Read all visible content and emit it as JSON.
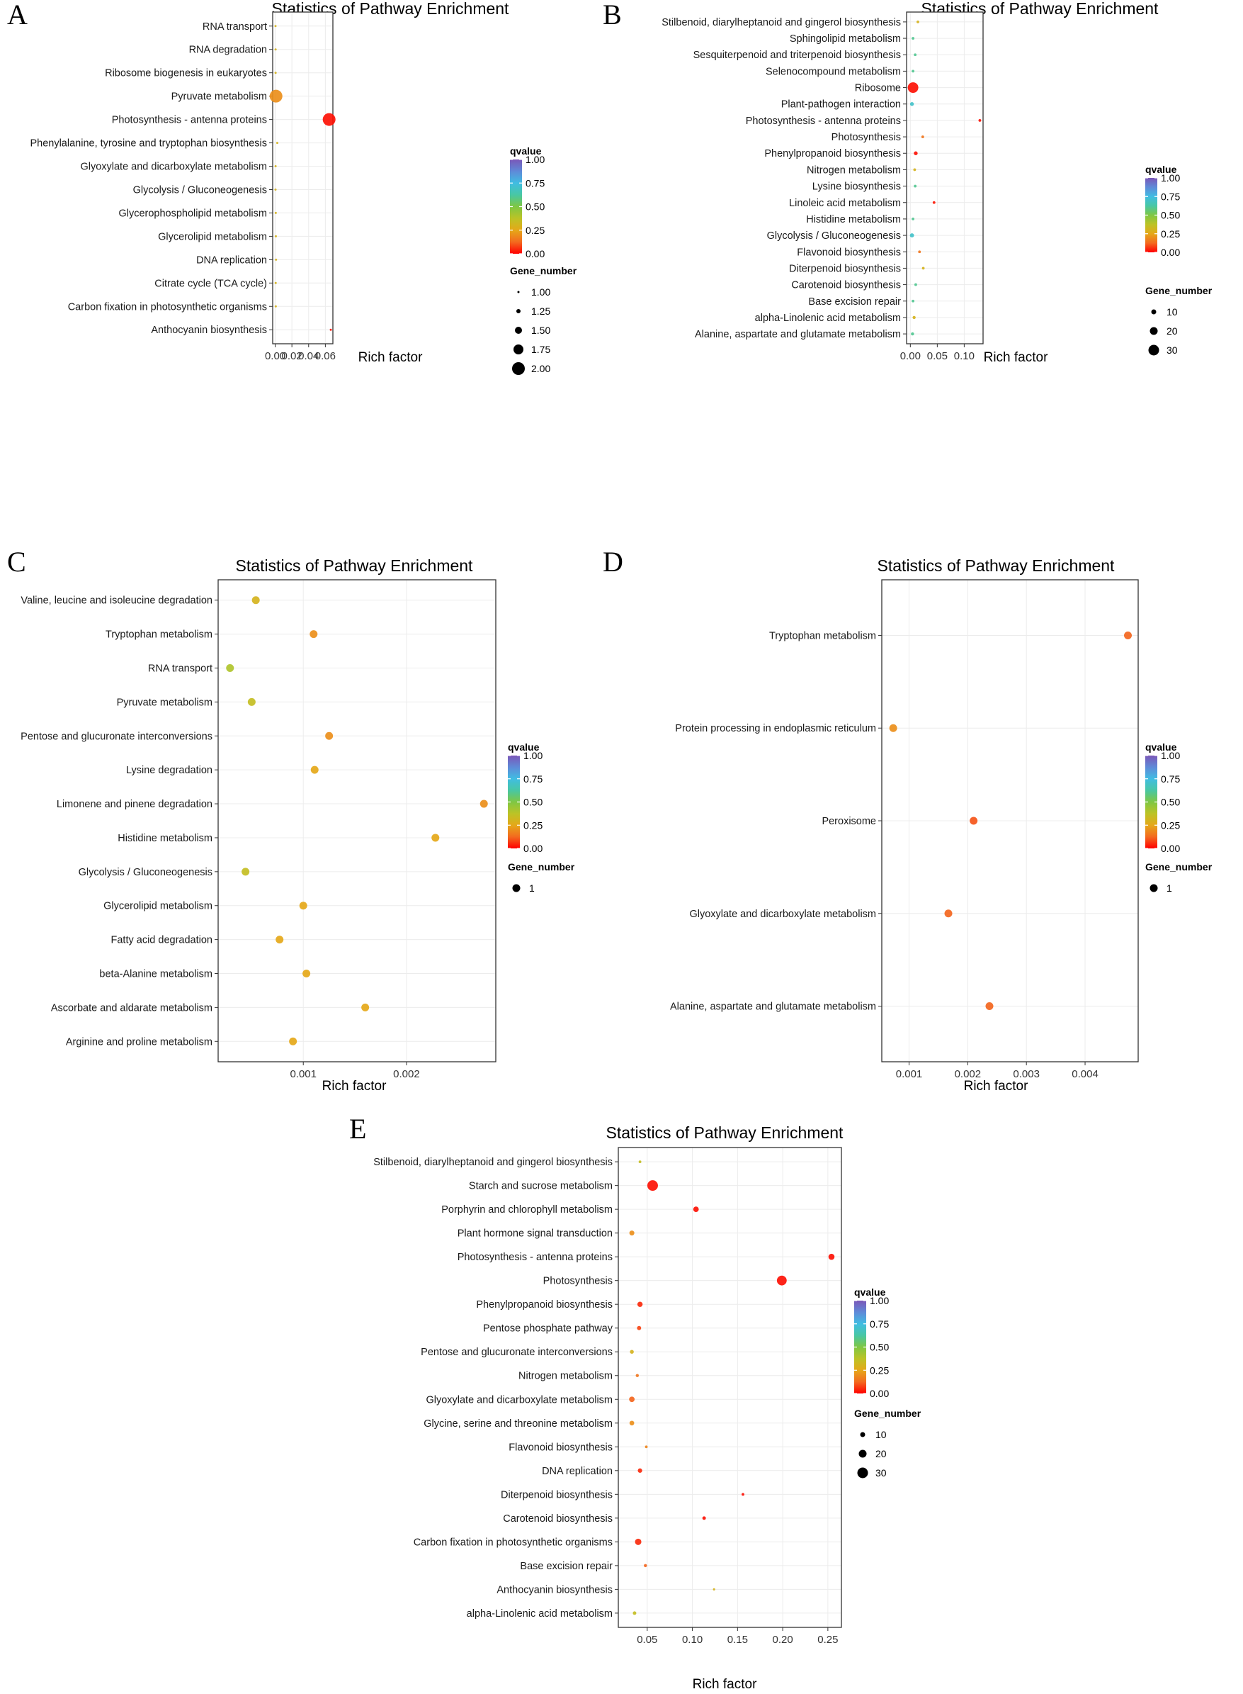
{
  "figure": {
    "colorbar_ticks": [
      "1.00",
      "0.75",
      "0.50",
      "0.25",
      "0.00"
    ]
  },
  "chart_data": [
    {
      "panel": "A",
      "type": "scatter",
      "title": "Statistics of Pathway Enrichment",
      "xlabel": "Rich factor",
      "xlim": [
        -0.003,
        0.069
      ],
      "xticks": [
        0,
        0.02,
        0.04,
        0.06
      ],
      "xtick_labels": [
        "0.00",
        "0.02",
        "0.04",
        "0.06"
      ],
      "legend": {
        "color_title": "qvalue",
        "size_title": "Gene_number",
        "size_labels": [
          "1.00",
          "1.25",
          "1.50",
          "1.75",
          "2.00"
        ],
        "size_values": [
          1,
          1.25,
          1.5,
          1.75,
          2
        ]
      },
      "points": [
        {
          "pathway": "RNA transport",
          "rich_factor": 0.0004,
          "qvalue": 0.3,
          "gene_number": 1
        },
        {
          "pathway": "RNA degradation",
          "rich_factor": 0.0005,
          "qvalue": 0.3,
          "gene_number": 1
        },
        {
          "pathway": "Ribosome biogenesis in eukaryotes",
          "rich_factor": 0.0005,
          "qvalue": 0.3,
          "gene_number": 1
        },
        {
          "pathway": "Pyruvate metabolism",
          "rich_factor": 0.001,
          "qvalue": 0.2,
          "gene_number": 2
        },
        {
          "pathway": "Photosynthesis - antenna proteins",
          "rich_factor": 0.0645,
          "qvalue": 0.02,
          "gene_number": 2
        },
        {
          "pathway": "Phenylalanine, tyrosine and tryptophan biosynthesis",
          "rich_factor": 0.0025,
          "qvalue": 0.3,
          "gene_number": 1
        },
        {
          "pathway": "Glyoxylate and dicarboxylate metabolism",
          "rich_factor": 0.0005,
          "qvalue": 0.3,
          "gene_number": 1
        },
        {
          "pathway": "Glycolysis / Gluconeogenesis",
          "rich_factor": 0.0004,
          "qvalue": 0.3,
          "gene_number": 1
        },
        {
          "pathway": "Glycerophospholipid metabolism",
          "rich_factor": 0.0007,
          "qvalue": 0.3,
          "gene_number": 1
        },
        {
          "pathway": "Glycerolipid metabolism",
          "rich_factor": 0.0008,
          "qvalue": 0.3,
          "gene_number": 1
        },
        {
          "pathway": "DNA replication",
          "rich_factor": 0.001,
          "qvalue": 0.3,
          "gene_number": 1
        },
        {
          "pathway": "Citrate cycle (TCA cycle)",
          "rich_factor": 0.0006,
          "qvalue": 0.3,
          "gene_number": 1
        },
        {
          "pathway": "Carbon fixation in photosynthetic organisms",
          "rich_factor": 0.0007,
          "qvalue": 0.3,
          "gene_number": 1
        },
        {
          "pathway": "Anthocyanin biosynthesis",
          "rich_factor": 0.0665,
          "qvalue": 0.02,
          "gene_number": 1
        }
      ]
    },
    {
      "panel": "B",
      "type": "scatter",
      "title": "Statistics of Pathway Enrichment",
      "xlabel": "Rich factor",
      "xlim": [
        -0.007,
        0.135
      ],
      "xticks": [
        0,
        0.05,
        0.1
      ],
      "xtick_labels": [
        "0.00",
        "0.05",
        "0.10"
      ],
      "legend": {
        "color_title": "qvalue",
        "size_title": "Gene_number",
        "size_labels": [
          "10",
          "20",
          "30"
        ],
        "size_values": [
          10,
          20,
          30
        ]
      },
      "points": [
        {
          "pathway": "Stilbenoid, diarylheptanoid and gingerol biosynthesis",
          "rich_factor": 0.014,
          "qvalue": 0.3,
          "gene_number": 3
        },
        {
          "pathway": "Sphingolipid metabolism",
          "rich_factor": 0.005,
          "qvalue": 0.6,
          "gene_number": 3
        },
        {
          "pathway": "Sesquiterpenoid and triterpenoid biosynthesis",
          "rich_factor": 0.009,
          "qvalue": 0.6,
          "gene_number": 3
        },
        {
          "pathway": "Selenocompound metabolism",
          "rich_factor": 0.005,
          "qvalue": 0.6,
          "gene_number": 3
        },
        {
          "pathway": "Ribosome",
          "rich_factor": 0.005,
          "qvalue": 0.02,
          "gene_number": 35
        },
        {
          "pathway": "Plant-pathogen interaction",
          "rich_factor": 0.003,
          "qvalue": 0.7,
          "gene_number": 6
        },
        {
          "pathway": "Photosynthesis - antenna proteins",
          "rich_factor": 0.129,
          "qvalue": 0.02,
          "gene_number": 3
        },
        {
          "pathway": "Photosynthesis",
          "rich_factor": 0.023,
          "qvalue": 0.15,
          "gene_number": 3
        },
        {
          "pathway": "Phenylpropanoid biosynthesis",
          "rich_factor": 0.01,
          "qvalue": 0.02,
          "gene_number": 6
        },
        {
          "pathway": "Nitrogen metabolism",
          "rich_factor": 0.008,
          "qvalue": 0.3,
          "gene_number": 3
        },
        {
          "pathway": "Lysine biosynthesis",
          "rich_factor": 0.009,
          "qvalue": 0.6,
          "gene_number": 3
        },
        {
          "pathway": "Linoleic acid metabolism",
          "rich_factor": 0.044,
          "qvalue": 0.03,
          "gene_number": 3
        },
        {
          "pathway": "Histidine metabolism",
          "rich_factor": 0.005,
          "qvalue": 0.6,
          "gene_number": 3
        },
        {
          "pathway": "Glycolysis / Gluconeogenesis",
          "rich_factor": 0.003,
          "qvalue": 0.7,
          "gene_number": 7
        },
        {
          "pathway": "Flavonoid biosynthesis",
          "rich_factor": 0.017,
          "qvalue": 0.15,
          "gene_number": 3
        },
        {
          "pathway": "Diterpenoid biosynthesis",
          "rich_factor": 0.024,
          "qvalue": 0.3,
          "gene_number": 3
        },
        {
          "pathway": "Carotenoid biosynthesis",
          "rich_factor": 0.01,
          "qvalue": 0.6,
          "gene_number": 3
        },
        {
          "pathway": "Base excision repair",
          "rich_factor": 0.005,
          "qvalue": 0.6,
          "gene_number": 3
        },
        {
          "pathway": "alpha-Linolenic acid metabolism",
          "rich_factor": 0.007,
          "qvalue": 0.3,
          "gene_number": 4
        },
        {
          "pathway": "Alanine, aspartate and glutamate metabolism",
          "rich_factor": 0.004,
          "qvalue": 0.6,
          "gene_number": 4
        }
      ]
    },
    {
      "panel": "C",
      "type": "scatter",
      "title": "Statistics of Pathway Enrichment",
      "xlabel": "Rich factor",
      "xlim": [
        0.000175,
        0.002865
      ],
      "xticks": [
        0.001,
        0.002
      ],
      "xtick_labels": [
        "0.001",
        "0.002"
      ],
      "legend": {
        "color_title": "qvalue",
        "size_title": "Gene_number",
        "size_labels": [
          "1"
        ],
        "size_values": [
          1
        ]
      },
      "points": [
        {
          "pathway": "Valine, leucine and isoleucine degradation",
          "rich_factor": 0.00054,
          "qvalue": 0.3,
          "gene_number": 1
        },
        {
          "pathway": "Tryptophan metabolism",
          "rich_factor": 0.0011,
          "qvalue": 0.2,
          "gene_number": 1
        },
        {
          "pathway": "RNA transport",
          "rich_factor": 0.00029,
          "qvalue": 0.4,
          "gene_number": 1
        },
        {
          "pathway": "Pyruvate metabolism",
          "rich_factor": 0.0005,
          "qvalue": 0.35,
          "gene_number": 1
        },
        {
          "pathway": "Pentose and glucuronate interconversions",
          "rich_factor": 0.00125,
          "qvalue": 0.2,
          "gene_number": 1
        },
        {
          "pathway": "Lysine degradation",
          "rich_factor": 0.00111,
          "qvalue": 0.25,
          "gene_number": 1
        },
        {
          "pathway": "Limonene and pinene degradation",
          "rich_factor": 0.00275,
          "qvalue": 0.2,
          "gene_number": 1
        },
        {
          "pathway": "Histidine metabolism",
          "rich_factor": 0.00228,
          "qvalue": 0.25,
          "gene_number": 1
        },
        {
          "pathway": "Glycolysis / Gluconeogenesis",
          "rich_factor": 0.00044,
          "qvalue": 0.35,
          "gene_number": 1
        },
        {
          "pathway": "Glycerolipid metabolism",
          "rich_factor": 0.001,
          "qvalue": 0.25,
          "gene_number": 1
        },
        {
          "pathway": "Fatty acid degradation",
          "rich_factor": 0.00077,
          "qvalue": 0.25,
          "gene_number": 1
        },
        {
          "pathway": "beta-Alanine metabolism",
          "rich_factor": 0.00103,
          "qvalue": 0.25,
          "gene_number": 1
        },
        {
          "pathway": "Ascorbate and aldarate metabolism",
          "rich_factor": 0.0016,
          "qvalue": 0.25,
          "gene_number": 1
        },
        {
          "pathway": "Arginine and proline metabolism",
          "rich_factor": 0.0009,
          "qvalue": 0.25,
          "gene_number": 1
        }
      ]
    },
    {
      "panel": "D",
      "type": "scatter",
      "title": "Statistics of Pathway Enrichment",
      "xlabel": "Rich factor",
      "xlim": [
        0.000535,
        0.004905
      ],
      "xticks": [
        0.001,
        0.002,
        0.003,
        0.004
      ],
      "xtick_labels": [
        "0.001",
        "0.002",
        "0.003",
        "0.004"
      ],
      "legend": {
        "color_title": "qvalue",
        "size_title": "Gene_number",
        "size_labels": [
          "1"
        ],
        "size_values": [
          1
        ]
      },
      "points": [
        {
          "pathway": "Tryptophan metabolism",
          "rich_factor": 0.00473,
          "qvalue": 0.12,
          "gene_number": 1
        },
        {
          "pathway": "Protein processing in endoplasmic reticulum",
          "rich_factor": 0.00073,
          "qvalue": 0.2,
          "gene_number": 1
        },
        {
          "pathway": "Peroxisome",
          "rich_factor": 0.0021,
          "qvalue": 0.1,
          "gene_number": 1
        },
        {
          "pathway": "Glyoxylate and dicarboxylate metabolism",
          "rich_factor": 0.00167,
          "qvalue": 0.12,
          "gene_number": 1
        },
        {
          "pathway": "Alanine, aspartate and glutamate metabolism",
          "rich_factor": 0.00237,
          "qvalue": 0.12,
          "gene_number": 1
        }
      ]
    },
    {
      "panel": "E",
      "type": "scatter",
      "title": "Statistics of Pathway Enrichment",
      "xlabel": "Rich factor",
      "xlim": [
        0.018,
        0.265
      ],
      "xticks": [
        0.05,
        0.1,
        0.15,
        0.2,
        0.25
      ],
      "xtick_labels": [
        "0.05",
        "0.10",
        "0.15",
        "0.20",
        "0.25"
      ],
      "legend": {
        "color_title": "qvalue",
        "size_title": "Gene_number",
        "size_labels": [
          "10",
          "20",
          "30"
        ],
        "size_values": [
          10,
          20,
          30
        ]
      },
      "points": [
        {
          "pathway": "Stilbenoid, diarylheptanoid and gingerol biosynthesis",
          "rich_factor": 0.042,
          "qvalue": 0.35,
          "gene_number": 3
        },
        {
          "pathway": "Starch and sucrose metabolism",
          "rich_factor": 0.056,
          "qvalue": 0.02,
          "gene_number": 32
        },
        {
          "pathway": "Porphyrin and chlorophyll metabolism",
          "rich_factor": 0.104,
          "qvalue": 0.02,
          "gene_number": 12
        },
        {
          "pathway": "Plant hormone signal transduction",
          "rich_factor": 0.033,
          "qvalue": 0.2,
          "gene_number": 10
        },
        {
          "pathway": "Photosynthesis - antenna proteins",
          "rich_factor": 0.254,
          "qvalue": 0.02,
          "gene_number": 14
        },
        {
          "pathway": "Photosynthesis",
          "rich_factor": 0.199,
          "qvalue": 0.02,
          "gene_number": 27
        },
        {
          "pathway": "Phenylpropanoid biosynthesis",
          "rich_factor": 0.042,
          "qvalue": 0.05,
          "gene_number": 11
        },
        {
          "pathway": "Pentose phosphate pathway",
          "rich_factor": 0.041,
          "qvalue": 0.08,
          "gene_number": 7
        },
        {
          "pathway": "Pentose and glucuronate interconversions",
          "rich_factor": 0.033,
          "qvalue": 0.3,
          "gene_number": 6
        },
        {
          "pathway": "Nitrogen metabolism",
          "rich_factor": 0.039,
          "qvalue": 0.15,
          "gene_number": 4
        },
        {
          "pathway": "Glyoxylate and dicarboxylate metabolism",
          "rich_factor": 0.033,
          "qvalue": 0.12,
          "gene_number": 12
        },
        {
          "pathway": "Glycine, serine and threonine metabolism",
          "rich_factor": 0.033,
          "qvalue": 0.2,
          "gene_number": 9
        },
        {
          "pathway": "Flavonoid biosynthesis",
          "rich_factor": 0.049,
          "qvalue": 0.18,
          "gene_number": 3
        },
        {
          "pathway": "DNA replication",
          "rich_factor": 0.042,
          "qvalue": 0.05,
          "gene_number": 8
        },
        {
          "pathway": "Diterpenoid biosynthesis",
          "rich_factor": 0.156,
          "qvalue": 0.02,
          "gene_number": 3
        },
        {
          "pathway": "Carotenoid biosynthesis",
          "rich_factor": 0.113,
          "qvalue": 0.02,
          "gene_number": 5
        },
        {
          "pathway": "Carbon fixation in photosynthetic organisms",
          "rich_factor": 0.04,
          "qvalue": 0.05,
          "gene_number": 15
        },
        {
          "pathway": "Base excision repair",
          "rich_factor": 0.048,
          "qvalue": 0.12,
          "gene_number": 4
        },
        {
          "pathway": "Anthocyanin biosynthesis",
          "rich_factor": 0.124,
          "qvalue": 0.3,
          "gene_number": 2
        },
        {
          "pathway": "alpha-Linolenic acid metabolism",
          "rich_factor": 0.036,
          "qvalue": 0.35,
          "gene_number": 5
        }
      ]
    }
  ]
}
